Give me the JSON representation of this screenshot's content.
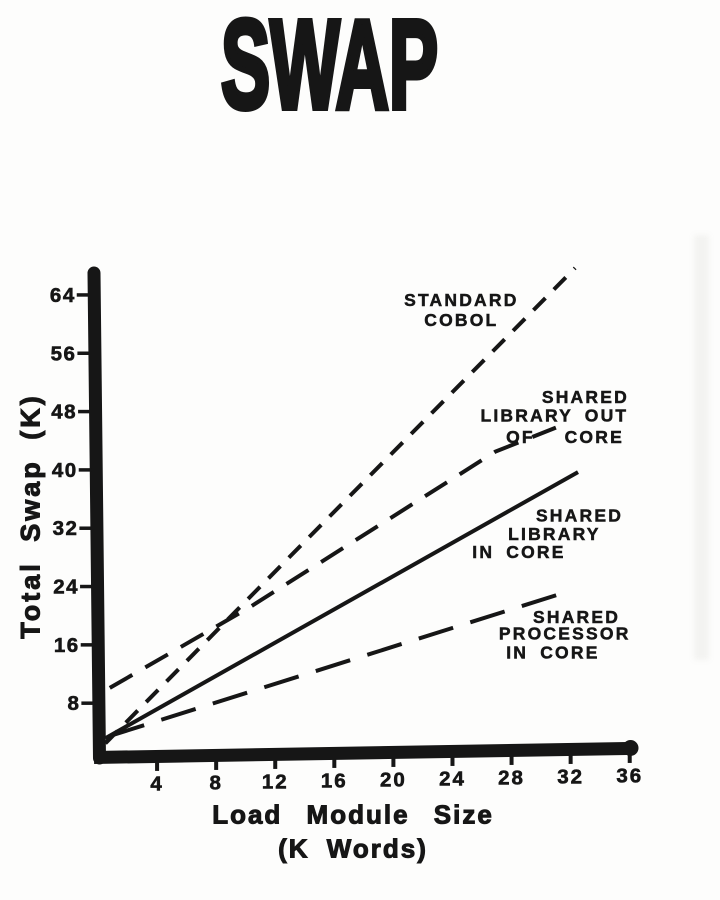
{
  "page": {
    "background": "#fdfdfc",
    "ink": "#161616"
  },
  "chart_data": {
    "type": "line",
    "title": "SWAP",
    "xlabel": "Load Module Size",
    "xlabel_units": "(K Words)",
    "ylabel": "Total Swap (K)",
    "xlim": [
      0,
      36
    ],
    "ylim": [
      0,
      68
    ],
    "x_ticks": [
      4,
      8,
      12,
      16,
      20,
      24,
      28,
      32,
      36
    ],
    "y_ticks": [
      8,
      16,
      24,
      32,
      40,
      48,
      56,
      64
    ],
    "grid": false,
    "legend_position": "inline-annotations",
    "series": [
      {
        "name": "STANDARD COBOL",
        "line_style": "short-dash",
        "points": [
          [
            0.5,
            2.5
          ],
          [
            32.3,
            67.7
          ]
        ],
        "label_lines": [
          {
            "text": "STANDARD",
            "x": 24.6,
            "y": 63.4
          },
          {
            "text": "COBOL",
            "x": 24.6,
            "y": 60.6
          }
        ]
      },
      {
        "name": "SHARED LIBRARY OUT OF CORE",
        "line_style": "medium-dash",
        "points": [
          [
            0.8,
            10.1
          ],
          [
            10.3,
            21.2
          ],
          [
            26.9,
            42.5
          ],
          [
            31.0,
            45.8
          ]
        ],
        "label_lines": [
          {
            "text": "SHARED",
            "x": 33.0,
            "y": 50.1
          },
          {
            "text": "LIBRARY OUT",
            "x": 30.9,
            "y": 47.5
          },
          {
            "text": "OF",
            "x": 28.6,
            "y": 44.6
          },
          {
            "text": "CORE",
            "x": 33.6,
            "y": 44.6
          }
        ]
      },
      {
        "name": "SHARED LIBRARY IN CORE",
        "line_style": "solid",
        "points": [
          [
            0.5,
            3.2
          ],
          [
            32.5,
            39.7
          ]
        ],
        "label_lines": [
          {
            "text": "SHARED",
            "x": 32.6,
            "y": 33.8
          },
          {
            "text": "LIBRARY",
            "x": 30.9,
            "y": 31.3
          },
          {
            "text": "IN CORE",
            "x": 28.5,
            "y": 28.8
          }
        ]
      },
      {
        "name": "SHARED PROCESSOR IN CORE",
        "line_style": "long-dash",
        "points": [
          [
            0.8,
            3.5
          ],
          [
            31.8,
            23.3
          ]
        ],
        "label_lines": [
          {
            "text": "SHARED",
            "x": 32.4,
            "y": 19.9
          },
          {
            "text": "PROCESSOR",
            "x": 31.6,
            "y": 17.6
          },
          {
            "text": "IN CORE",
            "x": 30.8,
            "y": 15.0
          }
        ]
      }
    ]
  }
}
